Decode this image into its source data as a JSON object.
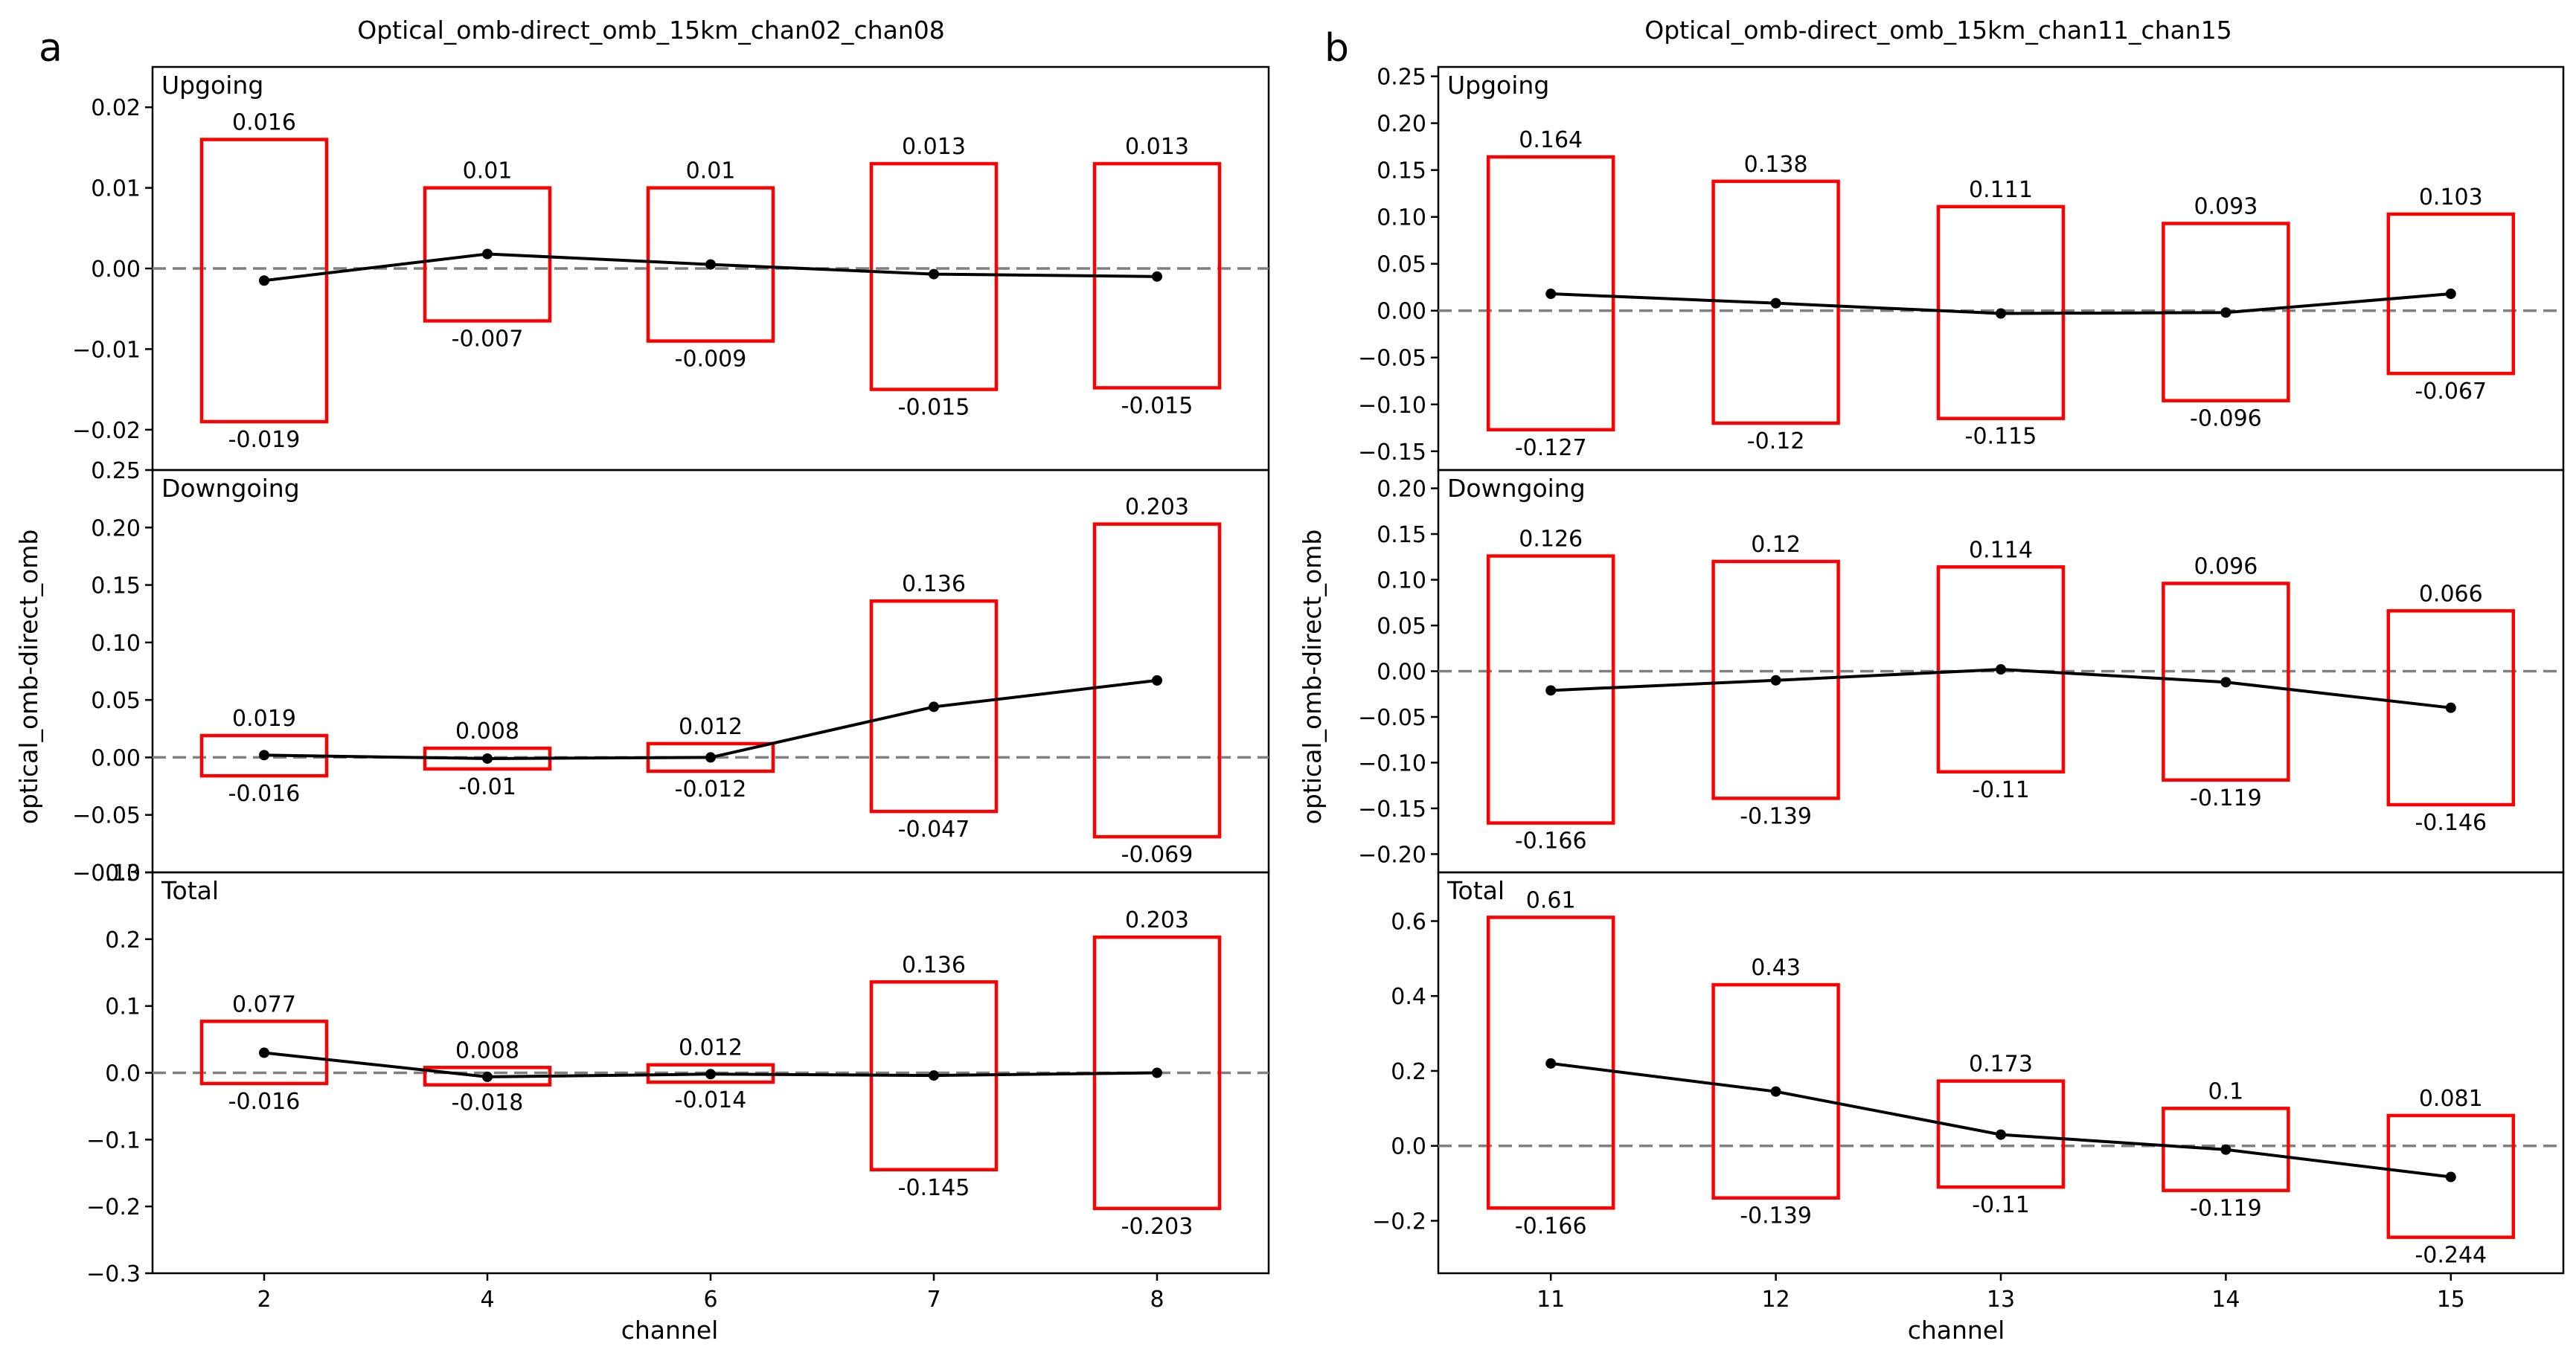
{
  "figure": {
    "panels": [
      {
        "letter": "a",
        "title": "Optical_omb-direct_omb_15km_chan02_chan08",
        "ylabel": "optical_omb-direct_omb",
        "xlabel": "channel",
        "categories": [
          "2",
          "4",
          "6",
          "7",
          "8"
        ]
      },
      {
        "letter": "b",
        "title": "Optical_omb-direct_omb_15km_chan11_chan15",
        "ylabel": "optical_omb-direct_omb",
        "xlabel": "channel",
        "categories": [
          "11",
          "12",
          "13",
          "14",
          "15"
        ]
      }
    ]
  },
  "chart_data": [
    {
      "panel": "a",
      "type": "box-range-with-mean-line",
      "title": "Optical_omb-direct_omb_15km_chan02_chan08",
      "xlabel": "channel",
      "ylabel": "optical_omb-direct_omb",
      "categories": [
        "2",
        "4",
        "6",
        "7",
        "8"
      ],
      "subplots": [
        {
          "label": "Upgoing",
          "ylim": [
            -0.025,
            0.025
          ],
          "yticks": [
            -0.02,
            -0.01,
            0.0,
            0.01,
            0.02
          ],
          "ytick_labels": [
            "−0.02",
            "−0.01",
            "0.00",
            "0.01",
            "0.02"
          ],
          "max": [
            0.016,
            0.01,
            0.01,
            0.013,
            0.013
          ],
          "min": [
            -0.019,
            -0.0065,
            -0.009,
            -0.015,
            -0.0148
          ],
          "max_labels": [
            "0.016",
            "0.01",
            "0.01",
            "0.013",
            "0.013"
          ],
          "min_labels": [
            "-0.019",
            "-0.007",
            "-0.009",
            "-0.015",
            "-0.015"
          ],
          "mean": [
            -0.0015,
            0.0018,
            0.0005,
            -0.0007,
            -0.001
          ]
        },
        {
          "label": "Downgoing",
          "ylim": [
            -0.1,
            0.25
          ],
          "yticks": [
            -0.1,
            -0.05,
            0.0,
            0.05,
            0.1,
            0.15,
            0.2,
            0.25
          ],
          "ytick_labels": [
            "−0.10",
            "−0.05",
            "0.00",
            "0.05",
            "0.10",
            "0.15",
            "0.20",
            "0.25"
          ],
          "max": [
            0.019,
            0.008,
            0.012,
            0.136,
            0.203
          ],
          "min": [
            -0.016,
            -0.01,
            -0.012,
            -0.047,
            -0.069
          ],
          "max_labels": [
            "0.019",
            "0.008",
            "0.012",
            "0.136",
            "0.203"
          ],
          "min_labels": [
            "-0.016",
            "-0.01",
            "-0.012",
            "-0.047",
            "-0.069"
          ],
          "mean": [
            0.002,
            -0.001,
            0.0,
            0.044,
            0.067
          ]
        },
        {
          "label": "Total",
          "ylim": [
            -0.3,
            0.3
          ],
          "yticks": [
            -0.3,
            -0.2,
            -0.1,
            0.0,
            0.1,
            0.2,
            0.3
          ],
          "ytick_labels": [
            "−0.3",
            "−0.2",
            "−0.1",
            "0.0",
            "0.1",
            "0.2",
            "0.3"
          ],
          "max": [
            0.077,
            0.008,
            0.012,
            0.136,
            0.203
          ],
          "min": [
            -0.016,
            -0.018,
            -0.014,
            -0.145,
            -0.203
          ],
          "max_labels": [
            "0.077",
            "0.008",
            "0.012",
            "0.136",
            "0.203"
          ],
          "min_labels": [
            "-0.016",
            "-0.018",
            "-0.014",
            "-0.145",
            "-0.203"
          ],
          "mean": [
            0.03,
            -0.006,
            -0.002,
            -0.004,
            0.0
          ]
        }
      ]
    },
    {
      "panel": "b",
      "type": "box-range-with-mean-line",
      "title": "Optical_omb-direct_omb_15km_chan11_chan15",
      "xlabel": "channel",
      "ylabel": "optical_omb-direct_omb",
      "categories": [
        "11",
        "12",
        "13",
        "14",
        "15"
      ],
      "subplots": [
        {
          "label": "Upgoing",
          "ylim": [
            -0.17,
            0.26
          ],
          "yticks": [
            -0.15,
            -0.1,
            -0.05,
            0.0,
            0.05,
            0.1,
            0.15,
            0.2,
            0.25
          ],
          "ytick_labels": [
            "−0.15",
            "−0.10",
            "−0.05",
            "0.00",
            "0.05",
            "0.10",
            "0.15",
            "0.20",
            "0.25"
          ],
          "max": [
            0.164,
            0.138,
            0.111,
            0.093,
            0.103
          ],
          "min": [
            -0.127,
            -0.12,
            -0.115,
            -0.096,
            -0.067
          ],
          "max_labels": [
            "0.164",
            "0.138",
            "0.111",
            "0.093",
            "0.103"
          ],
          "min_labels": [
            "-0.127",
            "-0.12",
            "-0.115",
            "-0.096",
            "-0.067"
          ],
          "mean": [
            0.018,
            0.008,
            -0.003,
            -0.002,
            0.018
          ]
        },
        {
          "label": "Downgoing",
          "ylim": [
            -0.22,
            0.22
          ],
          "yticks": [
            -0.2,
            -0.15,
            -0.1,
            -0.05,
            0.0,
            0.05,
            0.1,
            0.15,
            0.2
          ],
          "ytick_labels": [
            "−0.20",
            "−0.15",
            "−0.10",
            "−0.05",
            "0.00",
            "0.05",
            "0.10",
            "0.15",
            "0.20"
          ],
          "max": [
            0.126,
            0.12,
            0.114,
            0.096,
            0.066
          ],
          "min": [
            -0.166,
            -0.139,
            -0.11,
            -0.119,
            -0.146
          ],
          "max_labels": [
            "0.126",
            "0.12",
            "0.114",
            "0.096",
            "0.066"
          ],
          "min_labels": [
            "-0.166",
            "-0.139",
            "-0.11",
            "-0.119",
            "-0.146"
          ],
          "mean": [
            -0.021,
            -0.01,
            0.002,
            -0.012,
            -0.04
          ]
        },
        {
          "label": "Total",
          "ylim": [
            -0.34,
            0.73
          ],
          "yticks": [
            -0.2,
            0.0,
            0.2,
            0.4,
            0.6
          ],
          "ytick_labels": [
            "−0.2",
            "0.0",
            "0.2",
            "0.4",
            "0.6"
          ],
          "max": [
            0.61,
            0.43,
            0.173,
            0.1,
            0.081
          ],
          "min": [
            -0.166,
            -0.139,
            -0.11,
            -0.119,
            -0.244
          ],
          "max_labels": [
            "0.61",
            "0.43",
            "0.173",
            "0.1",
            "0.081"
          ],
          "min_labels": [
            "-0.166",
            "-0.139",
            "-0.11",
            "-0.119",
            "-0.244"
          ],
          "mean": [
            0.22,
            0.145,
            0.03,
            -0.01,
            -0.083
          ]
        }
      ]
    }
  ]
}
